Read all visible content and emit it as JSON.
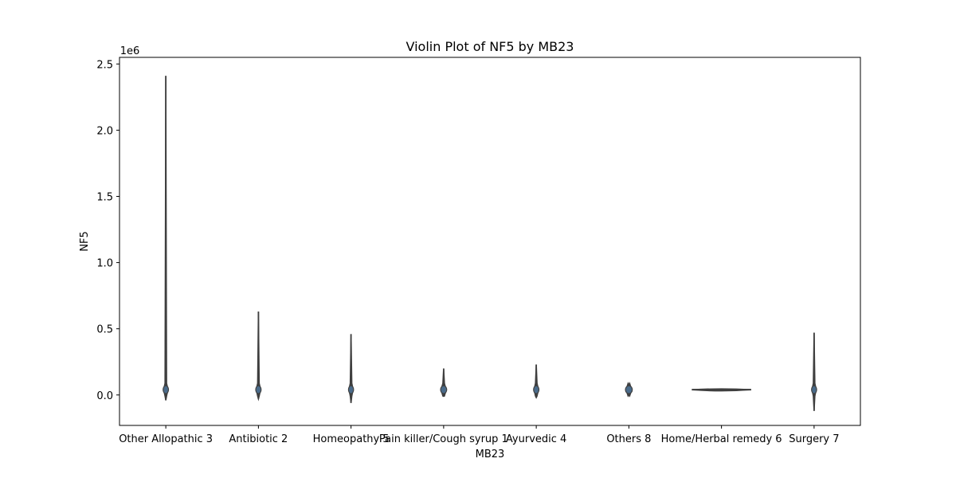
{
  "chart_data": {
    "type": "violin",
    "title": "Violin Plot of NF5 by MB23",
    "xlabel": "MB23",
    "ylabel": "NF5",
    "y_offset_text": "1e6",
    "ylim": [
      -230000,
      2550000
    ],
    "y_ticks": [
      0,
      500000,
      1000000,
      1500000,
      2000000,
      2500000
    ],
    "y_tick_labels": [
      "0.0",
      "0.5",
      "1.0",
      "1.5",
      "2.0",
      "2.5"
    ],
    "categories": [
      "Other Allopathic 3",
      "Antibiotic 2",
      "Homeopathy 5",
      "Pain killer/Cough syrup 1",
      "Ayurvedic 4",
      "Others 8",
      "Home/Herbal remedy 6",
      "Surgery 7"
    ],
    "series": [
      {
        "category": "Other Allopathic 3",
        "min": -40000,
        "max": 2410000,
        "center": 40000,
        "spread": 0.03
      },
      {
        "category": "Antibiotic 2",
        "min": -30000,
        "max": 630000,
        "center": 40000,
        "spread": 0.03
      },
      {
        "category": "Homeopathy 5",
        "min": -60000,
        "max": 460000,
        "center": 40000,
        "spread": 0.02
      },
      {
        "category": "Pain killer/Cough syrup 1",
        "min": -10000,
        "max": 200000,
        "center": 40000,
        "spread": 0.04
      },
      {
        "category": "Ayurvedic 4",
        "min": -20000,
        "max": 230000,
        "center": 40000,
        "spread": 0.03
      },
      {
        "category": "Others 8",
        "min": 0,
        "max": 75000,
        "center": 40000,
        "spread": 0.05
      },
      {
        "category": "Home/Herbal remedy 6",
        "min": 35000,
        "max": 45000,
        "center": 40000,
        "spread": 0.8
      },
      {
        "category": "Surgery 7",
        "min": -120000,
        "max": 470000,
        "center": 40000,
        "spread": 0.01
      }
    ],
    "colors": {
      "violin_fill": "#4a6b8a",
      "violin_edge": "#3f3f3f",
      "axes": "#000000",
      "background": "#ffffff"
    },
    "grid": false,
    "legend": "none"
  }
}
